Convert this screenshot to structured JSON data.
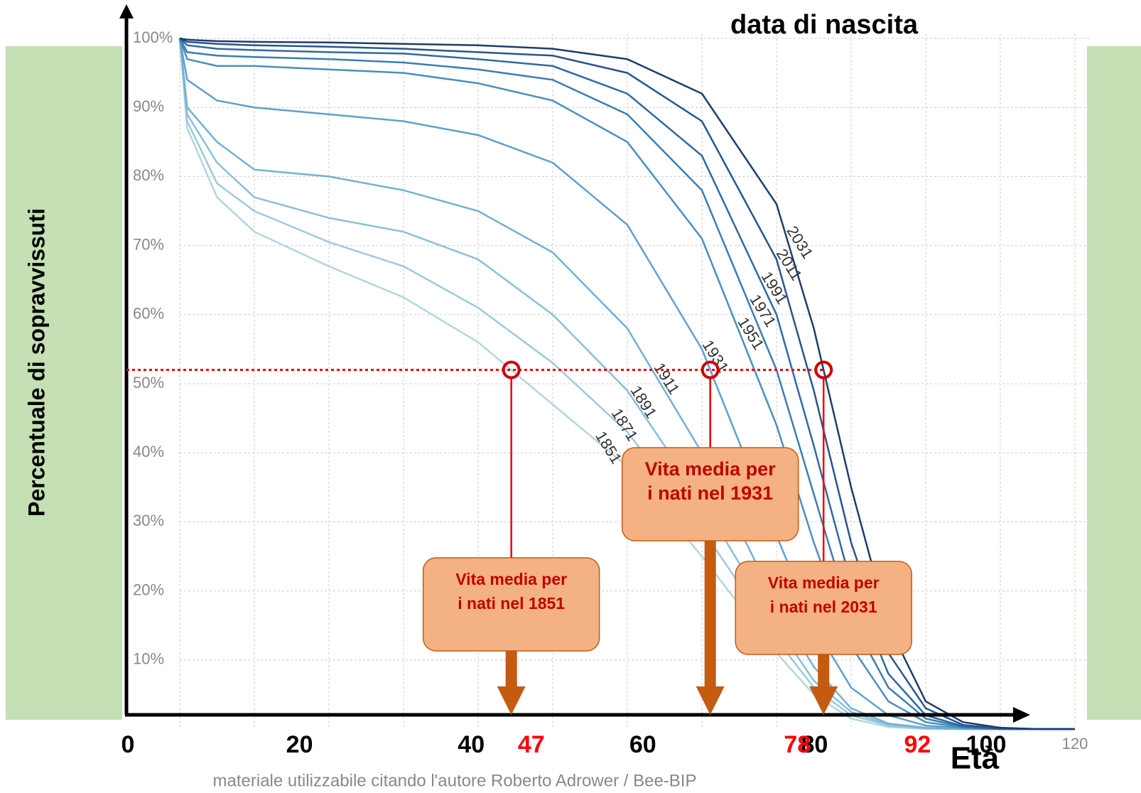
{
  "chart_data": {
    "type": "line",
    "title": "data di nascita",
    "y_label": "Percentuale di sopravvissuti",
    "x_label": "Età",
    "footer": "materiale utilizzabile citando l'autore Roberto Adrower / Bee-BIP",
    "x": [
      0,
      1,
      5,
      10,
      20,
      30,
      40,
      50,
      60,
      70,
      80,
      85,
      90,
      95,
      100,
      105,
      110,
      115,
      120
    ],
    "xlim": [
      0,
      122
    ],
    "xgrid": [
      0,
      10,
      20,
      30,
      40,
      50,
      60,
      70,
      80,
      90,
      100,
      110,
      120
    ],
    "xticks": [
      120
    ],
    "ylim": [
      0,
      100
    ],
    "yticks": [
      {
        "value": 10,
        "label": "10%"
      },
      {
        "value": 20,
        "label": "20%"
      },
      {
        "value": 30,
        "label": "30%"
      },
      {
        "value": 40,
        "label": "40%"
      },
      {
        "value": 50,
        "label": "50%"
      },
      {
        "value": 60,
        "label": "60%"
      },
      {
        "value": 70,
        "label": "70%"
      },
      {
        "value": 80,
        "label": "80%"
      },
      {
        "value": 90,
        "label": "90%"
      },
      {
        "value": 100,
        "label": "100%"
      }
    ],
    "grid": true,
    "series": [
      {
        "name": "1851",
        "color": "#b3d6de",
        "values": [
          100,
          87,
          77,
          72,
          67,
          62.5,
          56,
          47,
          38,
          25,
          11,
          5,
          1.5,
          0.3,
          0,
          0,
          0,
          0,
          0
        ]
      },
      {
        "name": "1871",
        "color": "#9fcadb",
        "values": [
          100,
          88,
          79,
          75,
          70.5,
          67,
          61,
          53,
          43,
          29,
          13,
          6,
          2,
          0.5,
          0.1,
          0,
          0,
          0,
          0
        ]
      },
      {
        "name": "1891",
        "color": "#8abfd8",
        "values": [
          100,
          89,
          82,
          77,
          74,
          72,
          68,
          60,
          49,
          33,
          15,
          7,
          2.5,
          0.6,
          0.1,
          0,
          0,
          0,
          0
        ]
      },
      {
        "name": "1911",
        "color": "#74b1d3",
        "values": [
          100,
          90,
          85,
          81,
          80,
          78,
          75,
          69,
          58,
          40,
          18,
          9,
          3,
          0.8,
          0.2,
          0,
          0,
          0,
          0
        ]
      },
      {
        "name": "1931",
        "color": "#5ea1cb",
        "values": [
          100,
          94,
          91,
          90,
          89,
          88,
          86,
          82,
          73,
          55,
          28,
          15,
          6,
          2,
          0.5,
          0.1,
          0,
          0,
          0
        ]
      },
      {
        "name": "1951",
        "color": "#4a8fc0",
        "values": [
          100,
          97,
          96,
          96,
          95.5,
          95,
          93.5,
          91,
          85,
          71,
          44,
          27,
          12,
          4,
          1,
          0.2,
          0,
          0,
          0
        ]
      },
      {
        "name": "1971",
        "color": "#3b7db3",
        "values": [
          100,
          98,
          97.5,
          97.3,
          97,
          96.5,
          95.5,
          94,
          89,
          78,
          52,
          34,
          16,
          6,
          1.5,
          0.3,
          0,
          0,
          0
        ]
      },
      {
        "name": "1991",
        "color": "#2f6aa2",
        "values": [
          100,
          99,
          98.5,
          98.3,
          98,
          97.8,
          97,
          96,
          92,
          83,
          60,
          41,
          21,
          8,
          2,
          0.4,
          0,
          0,
          0
        ]
      },
      {
        "name": "2011",
        "color": "#28568c",
        "values": [
          100,
          99.5,
          99.2,
          99,
          98.8,
          98.5,
          98,
          97.5,
          95,
          88,
          68,
          49,
          27,
          11,
          3,
          0.6,
          0.1,
          0,
          0
        ]
      },
      {
        "name": "2031",
        "color": "#1f3d6b",
        "values": [
          100,
          99.8,
          99.6,
          99.5,
          99.4,
          99.2,
          99,
          98.5,
          97,
          92,
          76,
          58,
          35,
          15,
          4,
          1,
          0.2,
          0,
          0
        ]
      }
    ],
    "ref_y": 52,
    "x2lim": [
      0,
      100
    ],
    "x2ticks": [
      0,
      20,
      40,
      60,
      80,
      100
    ],
    "annotations": [
      {
        "age": 47,
        "lines": [
          "Vita media per",
          "i nati nel 1851"
        ]
      },
      {
        "age": 78,
        "lines": [
          "Vita media per",
          "i nati nel 1931"
        ]
      },
      {
        "age": 92,
        "lines": [
          "Vita media per",
          "i nati nel 2031"
        ]
      }
    ]
  }
}
